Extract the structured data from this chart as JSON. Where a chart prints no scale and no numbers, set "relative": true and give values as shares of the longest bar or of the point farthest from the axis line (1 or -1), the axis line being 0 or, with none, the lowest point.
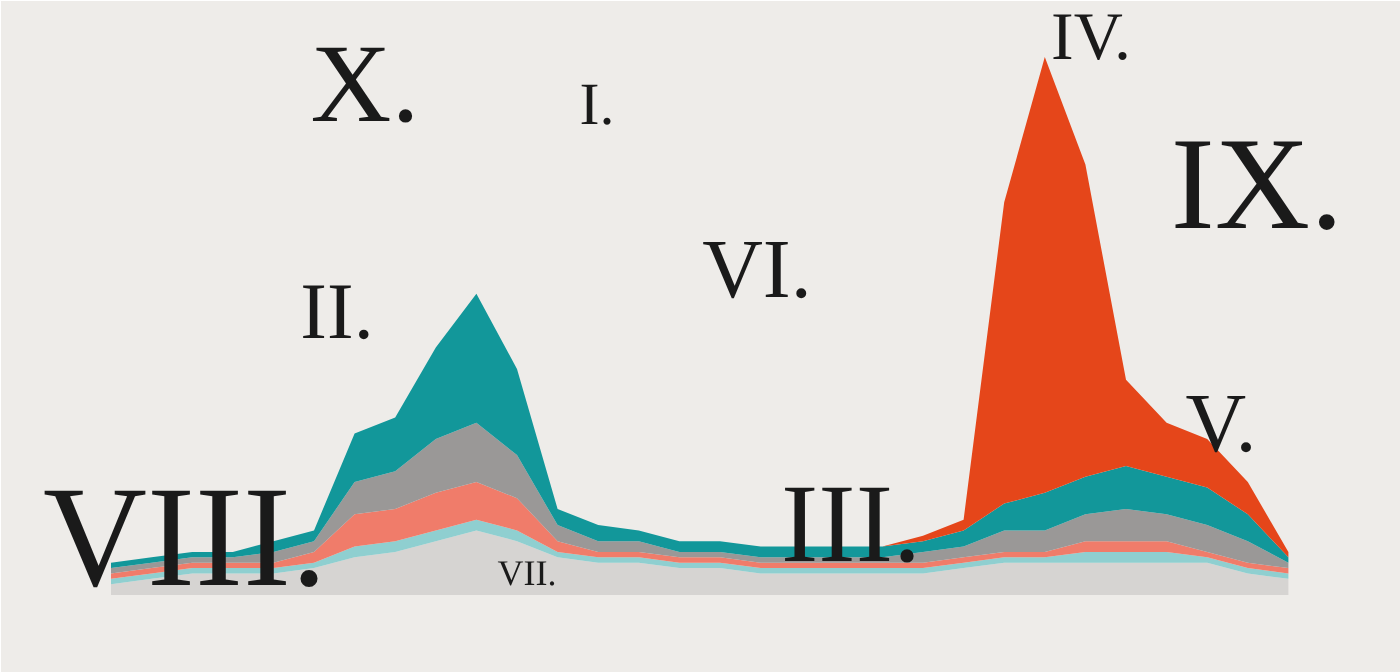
{
  "chart_data": {
    "type": "area",
    "stacked": true,
    "relative": true,
    "categories": [
      null,
      null,
      null,
      null,
      null,
      null,
      null,
      null,
      null,
      null,
      null,
      null,
      null,
      null,
      null,
      null,
      null,
      null,
      null,
      null,
      null,
      null,
      null,
      null,
      null,
      null,
      null,
      null,
      null,
      null
    ],
    "series": [
      {
        "color": "#d6d4d2",
        "values": [
          0.02,
          0.03,
          0.04,
          0.04,
          0.04,
          0.05,
          0.07,
          0.08,
          0.1,
          0.12,
          0.1,
          0.07,
          0.06,
          0.06,
          0.05,
          0.05,
          0.04,
          0.04,
          0.04,
          0.04,
          0.04,
          0.05,
          0.06,
          0.06,
          0.06,
          0.06,
          0.06,
          0.06,
          0.04,
          0.03
        ]
      },
      {
        "color": "#8fcfd0",
        "values": [
          0.01,
          0.01,
          0.01,
          0.01,
          0.01,
          0.01,
          0.02,
          0.02,
          0.02,
          0.02,
          0.02,
          0.01,
          0.01,
          0.01,
          0.01,
          0.01,
          0.01,
          0.01,
          0.01,
          0.01,
          0.01,
          0.01,
          0.01,
          0.01,
          0.02,
          0.02,
          0.02,
          0.01,
          0.01,
          0.01
        ]
      },
      {
        "color": "#f07c6a",
        "values": [
          0.01,
          0.01,
          0.01,
          0.01,
          0.01,
          0.02,
          0.06,
          0.06,
          0.07,
          0.07,
          0.06,
          0.02,
          0.01,
          0.01,
          0.01,
          0.01,
          0.01,
          0.01,
          0.01,
          0.01,
          0.01,
          0.01,
          0.01,
          0.01,
          0.02,
          0.02,
          0.02,
          0.01,
          0.01,
          0.01
        ]
      },
      {
        "color": "#9a9897",
        "values": [
          0.01,
          0.01,
          0.01,
          0.01,
          0.02,
          0.02,
          0.06,
          0.07,
          0.1,
          0.11,
          0.08,
          0.03,
          0.02,
          0.02,
          0.01,
          0.01,
          0.01,
          0.01,
          0.01,
          0.01,
          0.02,
          0.02,
          0.04,
          0.04,
          0.05,
          0.06,
          0.05,
          0.05,
          0.04,
          0.01
        ]
      },
      {
        "color": "#12979a",
        "values": [
          0.01,
          0.01,
          0.01,
          0.01,
          0.02,
          0.02,
          0.09,
          0.1,
          0.17,
          0.24,
          0.16,
          0.03,
          0.03,
          0.02,
          0.02,
          0.02,
          0.02,
          0.02,
          0.02,
          0.02,
          0.02,
          0.03,
          0.05,
          0.07,
          0.07,
          0.08,
          0.07,
          0.07,
          0.05,
          0.01
        ]
      },
      {
        "color": "#e5461a",
        "values": [
          0,
          0,
          0,
          0,
          0,
          0,
          0,
          0,
          0,
          0,
          0,
          0,
          0,
          0,
          0,
          0,
          0,
          0,
          0,
          0,
          0.01,
          0.02,
          0.56,
          0.81,
          0.58,
          0.16,
          0.1,
          0.09,
          0.06,
          0.01
        ]
      }
    ],
    "annotations": [
      "X.",
      "I.",
      "IV.",
      "IX.",
      "II.",
      "VI.",
      "VIII.",
      "VII.",
      "III.",
      "V."
    ]
  }
}
